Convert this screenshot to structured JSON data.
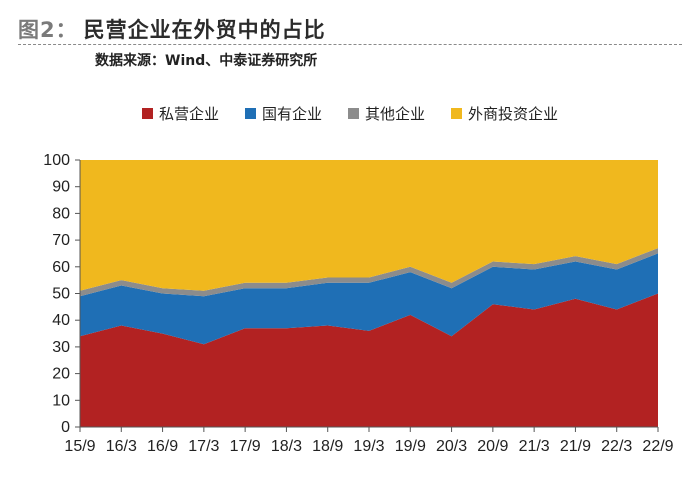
{
  "figure": {
    "number": "图2：",
    "title": "民营企业在外贸中的占比",
    "source": "数据来源：Wind、中泰证券研究所"
  },
  "colors": {
    "private": "#b22222",
    "state": "#1f6fb5",
    "other": "#8c8c8c",
    "foreign": "#f0b81e"
  },
  "chart_data": {
    "type": "area",
    "stacked": true,
    "x": [
      "15/9",
      "16/3",
      "16/9",
      "17/3",
      "17/9",
      "18/3",
      "18/9",
      "19/3",
      "19/9",
      "20/3",
      "20/9",
      "21/3",
      "21/9",
      "22/3",
      "22/9"
    ],
    "ylim": [
      0,
      100
    ],
    "yticks": [
      0,
      10,
      20,
      30,
      40,
      50,
      60,
      70,
      80,
      90,
      100
    ],
    "legend_position": "top-center",
    "grid": false,
    "series": [
      {
        "name": "私营企业",
        "color": "#b22222",
        "values": [
          34,
          38,
          35,
          31,
          37,
          37,
          38,
          36,
          42,
          34,
          46,
          44,
          48,
          44,
          50
        ]
      },
      {
        "name": "国有企业",
        "color": "#1f6fb5",
        "values": [
          15,
          15,
          15,
          18,
          15,
          15,
          16,
          18,
          16,
          18,
          14,
          15,
          14,
          15,
          15
        ]
      },
      {
        "name": "其他企业",
        "color": "#8c8c8c",
        "values": [
          2,
          2,
          2,
          2,
          2,
          2,
          2,
          2,
          2,
          2,
          2,
          2,
          2,
          2,
          2
        ]
      },
      {
        "name": "外商投资企业",
        "color": "#f0b81e",
        "values": [
          49,
          45,
          48,
          49,
          46,
          46,
          44,
          44,
          40,
          46,
          38,
          39,
          36,
          39,
          33
        ]
      }
    ]
  }
}
